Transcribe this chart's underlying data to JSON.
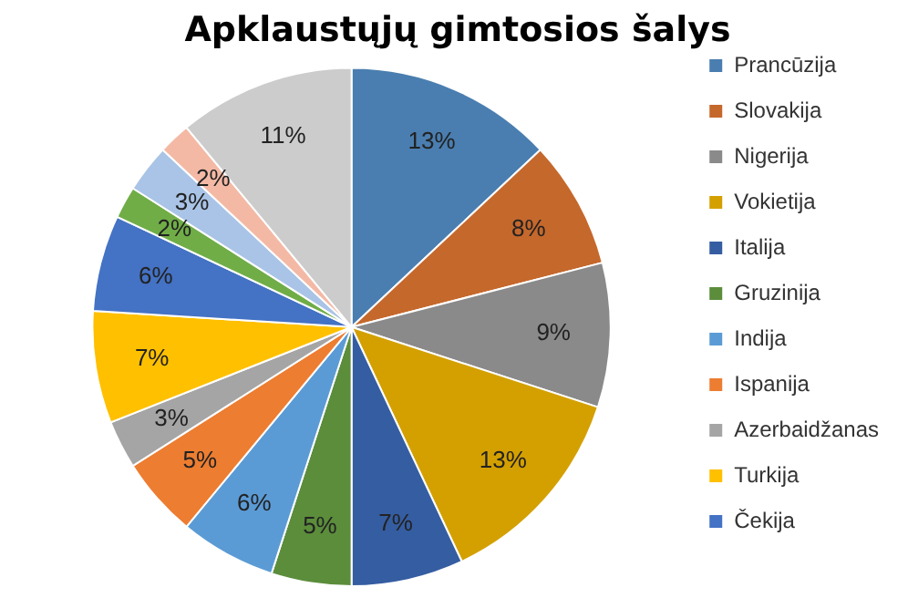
{
  "chart_data": {
    "type": "pie",
    "title": "Apklaustųjų gimtosios šalys",
    "categories": [
      "Prancūzija",
      "Slovakija",
      "Nigerija",
      "Vokietija",
      "Italija",
      "Gruzinija",
      "Indija",
      "Ispanija",
      "Azerbaidžanas",
      "Turkija",
      "Čekija",
      null,
      null,
      null,
      null
    ],
    "values": [
      13,
      8,
      9,
      13,
      7,
      5,
      6,
      5,
      3,
      7,
      6,
      2,
      3,
      2,
      11
    ],
    "colors": [
      "#4a7eb0",
      "#c5682c",
      "#8a8a8a",
      "#d4a000",
      "#355da1",
      "#5b8d3b",
      "#5b9bd5",
      "#ed7d31",
      "#a5a5a5",
      "#ffc000",
      "#4472c4",
      "#70ad47",
      "#a9c4e6",
      "#f4b9a5",
      "#cccccc"
    ],
    "value_labels": [
      "13%",
      "8%",
      "9%",
      "13%",
      "7%",
      "5%",
      "6%",
      "5%",
      "3%",
      "7%",
      "6%",
      "2%",
      "3%",
      "2%",
      "11%"
    ],
    "legend": "right"
  }
}
